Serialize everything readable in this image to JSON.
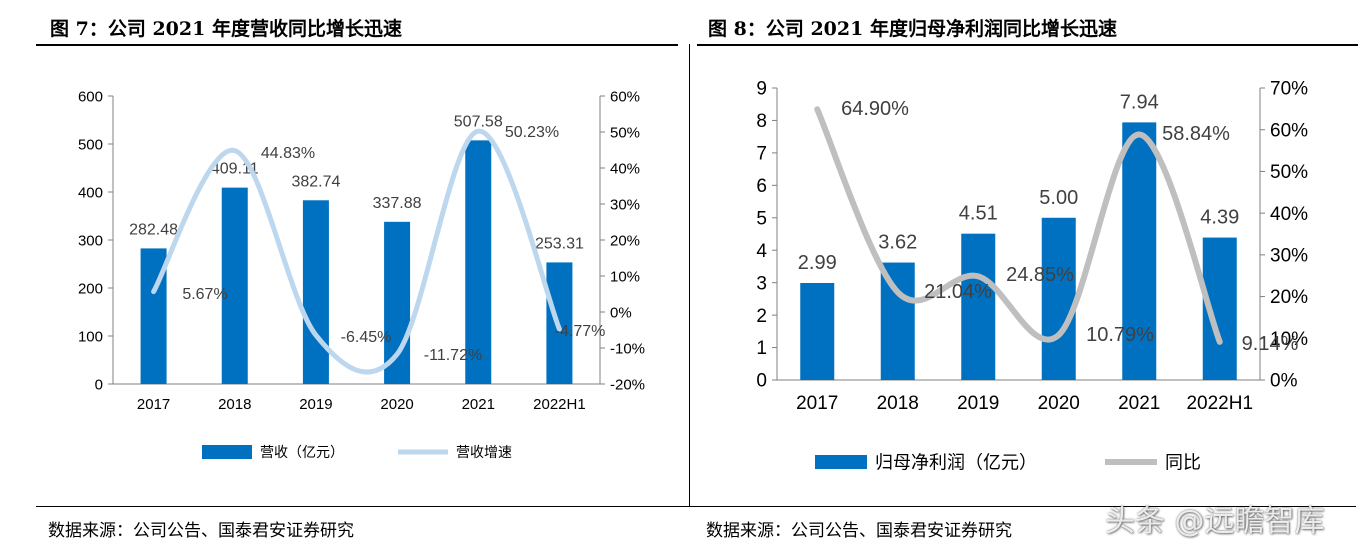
{
  "figures": [
    {
      "title": "图 7：公司 2021 年度营收同比增长迅速",
      "source": "数据来源：公司公告、国泰君安证券研究"
    },
    {
      "title": "图 8：公司 2021 年度归母净利润同比增长迅速",
      "source": "数据来源：公司公告、国泰君安证券研究"
    }
  ],
  "watermark": "头条 @远瞻智库",
  "colors": {
    "bar": "#0070C0",
    "line_left": "#BDD7EE",
    "line_right": "#BFBFBF",
    "axis": "#808080"
  },
  "chart_data": [
    {
      "type": "bar",
      "categories": [
        "2017",
        "2018",
        "2019",
        "2020",
        "2021",
        "2022H1"
      ],
      "series": [
        {
          "name": "营收（亿元）",
          "type": "bar",
          "axis": "left",
          "values": [
            282.48,
            409.11,
            382.74,
            337.88,
            507.58,
            253.31
          ],
          "labels": [
            "282.48",
            "409.11",
            "382.74",
            "337.88",
            "507.58",
            "253.31"
          ]
        },
        {
          "name": "营收增速",
          "type": "line",
          "axis": "right",
          "values": [
            5.67,
            44.83,
            -6.45,
            -11.72,
            50.23,
            -4.77
          ],
          "labels": [
            "5.67%",
            "44.83%",
            "-6.45%",
            "-11.72%",
            "50.23%",
            "-4.77%"
          ]
        }
      ],
      "ylim": [
        0,
        600
      ],
      "y_ticks": [
        "0",
        "100",
        "200",
        "300",
        "400",
        "500",
        "600"
      ],
      "y2lim": [
        -20,
        60
      ],
      "y2_ticks": [
        "-20%",
        "-10%",
        "0%",
        "10%",
        "20%",
        "30%",
        "40%",
        "50%",
        "60%"
      ],
      "legend": "bottom",
      "grid": false
    },
    {
      "type": "bar",
      "categories": [
        "2017",
        "2018",
        "2019",
        "2020",
        "2021",
        "2022H1"
      ],
      "series": [
        {
          "name": "归母净利润（亿元）",
          "type": "bar",
          "axis": "left",
          "values": [
            2.99,
            3.62,
            4.51,
            5.0,
            7.94,
            4.39
          ],
          "labels": [
            "2.99",
            "3.62",
            "4.51",
            "5.00",
            "7.94",
            "4.39"
          ]
        },
        {
          "name": "同比",
          "type": "line",
          "axis": "right",
          "values": [
            64.9,
            21.04,
            24.85,
            10.79,
            58.84,
            9.14
          ],
          "labels": [
            "64.90%",
            "21.04%",
            "24.85%",
            "10.79%",
            "58.84%",
            "9.14%"
          ]
        }
      ],
      "ylim": [
        0,
        9
      ],
      "y_ticks": [
        "0",
        "1",
        "2",
        "3",
        "4",
        "5",
        "6",
        "7",
        "8",
        "9"
      ],
      "y2lim": [
        0,
        70
      ],
      "y2_ticks": [
        "0%",
        "10%",
        "20%",
        "30%",
        "40%",
        "50%",
        "60%",
        "70%"
      ],
      "legend": "bottom",
      "grid": false
    }
  ]
}
